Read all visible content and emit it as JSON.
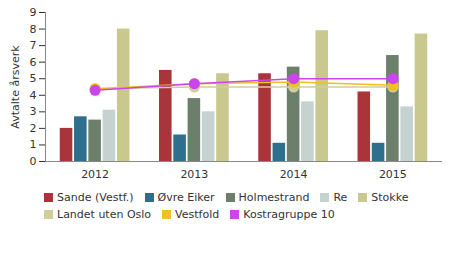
{
  "chart_data": {
    "type": "bar",
    "y_label": "Avtalte årsverk",
    "categories": [
      "2012",
      "2013",
      "2014",
      "2015"
    ],
    "ylim": [
      0,
      9
    ],
    "yticks": [
      0,
      1,
      2,
      3,
      4,
      5,
      6,
      7,
      8,
      9
    ],
    "grid": false,
    "legend": "bottom",
    "series": [
      {
        "name": "Sande (Vestf.)",
        "color": "#a93439",
        "type": "bar",
        "values": [
          2.0,
          5.5,
          5.3,
          4.2
        ]
      },
      {
        "name": "Øvre Eiker",
        "color": "#2e6f8e",
        "type": "bar",
        "values": [
          2.7,
          1.6,
          1.1,
          1.1
        ]
      },
      {
        "name": "Holmestrand",
        "color": "#6b7f6b",
        "type": "bar",
        "values": [
          2.5,
          3.8,
          5.7,
          6.4
        ]
      },
      {
        "name": "Re",
        "color": "#c5d2cf",
        "type": "bar",
        "values": [
          3.1,
          3.0,
          3.6,
          3.3
        ]
      },
      {
        "name": "Stokke",
        "color": "#c9c98f",
        "type": "bar",
        "values": [
          8.0,
          5.3,
          7.9,
          7.7
        ]
      },
      {
        "name": "Landet uten Oslo",
        "color": "#cfcf9a",
        "type": "line",
        "marker": "circle",
        "values": [
          4.4,
          4.5,
          4.5,
          4.5
        ]
      },
      {
        "name": "Vestfold",
        "color": "#f0c020",
        "type": "line",
        "marker": "circle",
        "values": [
          4.4,
          4.7,
          4.8,
          4.6
        ]
      },
      {
        "name": "Kostragruppe 10",
        "color": "#cc44ee",
        "type": "line",
        "marker": "circle",
        "values": [
          4.3,
          4.7,
          5.0,
          5.0
        ]
      }
    ]
  }
}
